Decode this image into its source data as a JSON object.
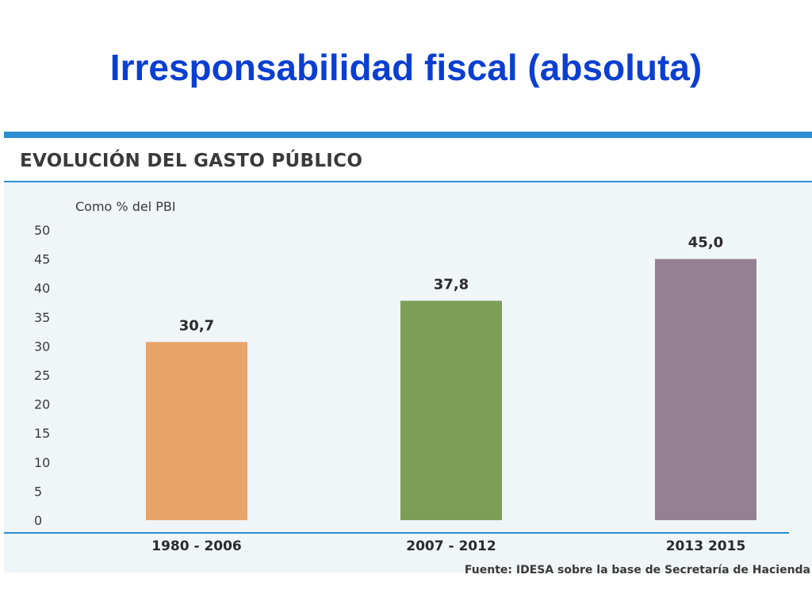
{
  "slide": {
    "title": "Irresponsabilidad fiscal (absoluta)"
  },
  "panel": {
    "title": "EVOLUCIÓN DEL GASTO PÚBLICO",
    "source": "Fuente: IDESA  sobre la base de Secretaría de Hacienda"
  },
  "colors": {
    "title": "#0b3fd1",
    "accent": "#2b8fd1",
    "panel_background": "#f0f5f8"
  },
  "chart_data": {
    "type": "bar",
    "title": "EVOLUCIÓN DEL GASTO PÚBLICO",
    "ylabel": "Como % del PBI",
    "xlabel": "",
    "categories": [
      "1980 - 2006",
      "2007 - 2012",
      "2013 2015"
    ],
    "values": [
      30.7,
      37.8,
      45.0
    ],
    "data_labels": [
      "30,7",
      "37,8",
      "45,0"
    ],
    "bar_colors": [
      "#e8a468",
      "#7d9e56",
      "#948090"
    ],
    "ylim": [
      0,
      50
    ],
    "yticks": [
      0,
      5,
      10,
      15,
      20,
      25,
      30,
      35,
      40,
      45,
      50
    ],
    "grid": false,
    "legend": "none"
  }
}
